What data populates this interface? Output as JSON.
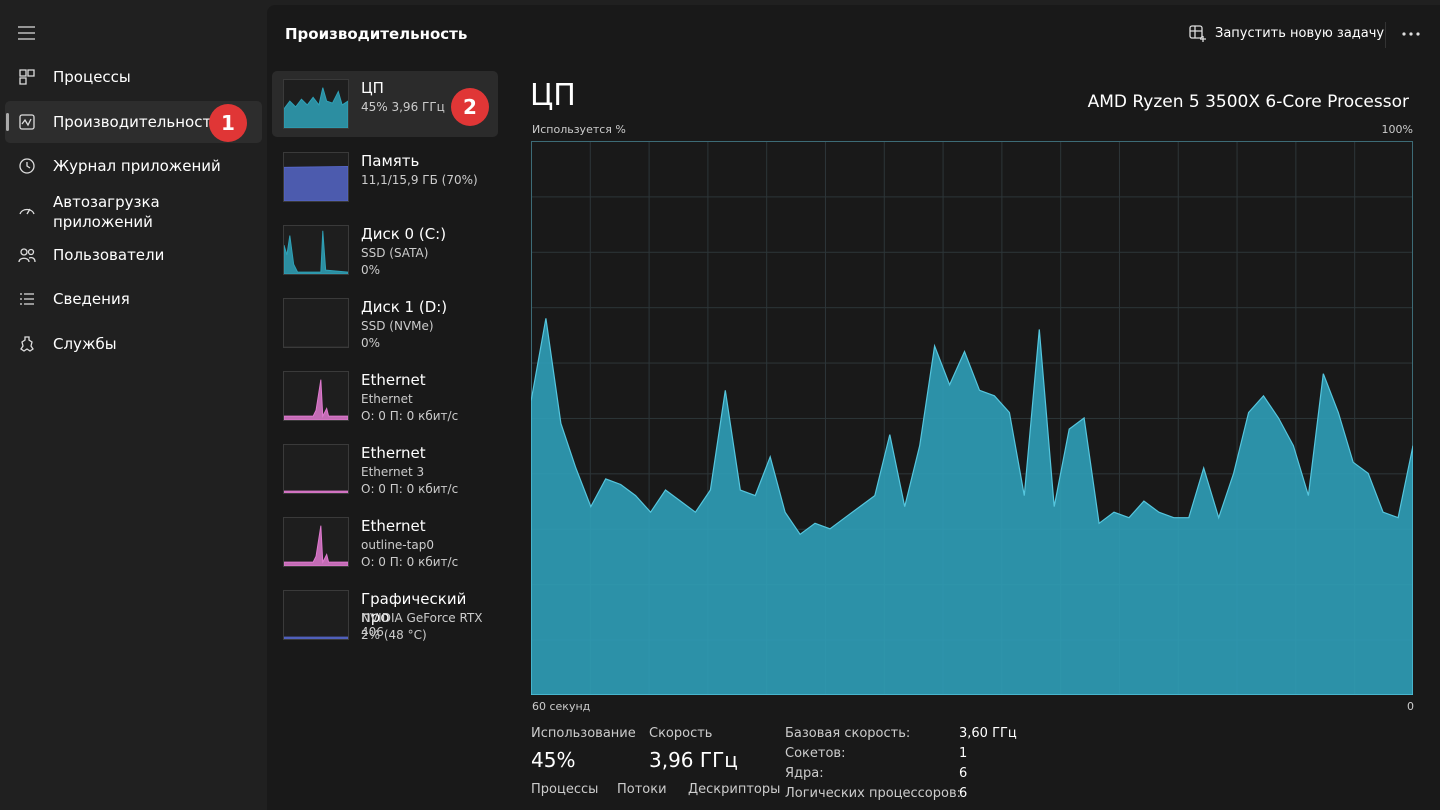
{
  "nav": {
    "items": [
      "Процессы",
      "Производительность",
      "Журнал приложений",
      "Автозагрузка приложений",
      "Пользователи",
      "Сведения",
      "Службы"
    ]
  },
  "badges": [
    "1",
    "2"
  ],
  "header": {
    "title": "Производительность",
    "action": "Запустить новую задачу"
  },
  "devices": [
    {
      "name": "ЦП",
      "lines": [
        "45%  3,96 ГГц"
      ]
    },
    {
      "name": "Память",
      "lines": [
        "11,1/15,9 ГБ (70%)"
      ]
    },
    {
      "name": "Диск 0 (C:)",
      "lines": [
        "SSD (SATA)",
        "0%"
      ]
    },
    {
      "name": "Диск 1 (D:)",
      "lines": [
        "SSD (NVMe)",
        "0%"
      ]
    },
    {
      "name": "Ethernet",
      "lines": [
        "Ethernet",
        "О: 0 П: 0 кбит/с"
      ]
    },
    {
      "name": "Ethernet",
      "lines": [
        "Ethernet 3",
        "О: 0 П: 0 кбит/с"
      ]
    },
    {
      "name": "Ethernet",
      "lines": [
        "outline-tap0",
        "О: 0 П: 0 кбит/с"
      ]
    },
    {
      "name": "Графический про",
      "lines": [
        "NVIDIA GeForce RTX 406",
        "2% (48 °C)"
      ]
    }
  ],
  "cpu": {
    "title": "ЦП",
    "model": "AMD Ryzen 5 3500X 6-Core Processor"
  },
  "chart_data": {
    "type": "area",
    "y_label": "Используется %",
    "color": "#2f9fb8",
    "ylim": [
      0,
      100
    ],
    "yticks": [
      {
        "value": 100,
        "label": "100%"
      }
    ],
    "xlim": [
      60,
      0
    ],
    "xticks": [
      {
        "value": 60,
        "label": "60 секунд"
      },
      0
    ],
    "values": [
      53,
      68,
      49,
      41,
      34,
      39,
      38,
      36,
      33,
      37,
      35,
      33,
      37,
      55,
      37,
      36,
      43,
      33,
      29,
      31,
      30,
      32,
      34,
      36,
      47,
      34,
      45,
      63,
      56,
      62,
      55,
      54,
      51,
      36,
      66,
      34,
      48,
      50,
      31,
      33,
      32,
      35,
      33,
      32,
      32,
      41,
      32,
      40,
      51,
      54,
      50,
      45,
      36,
      58,
      51,
      42,
      40,
      33,
      32,
      45
    ]
  },
  "stats": {
    "usage": {
      "label": "Использование",
      "value": "45%"
    },
    "speed": {
      "label": "Скорость",
      "value": "3,96 ГГц"
    },
    "counts": [
      "Процессы",
      "Потоки",
      "Дескрипторы"
    ],
    "details": [
      [
        "Базовая скорость:",
        "3,60 ГГц"
      ],
      [
        "Сокетов:",
        "1"
      ],
      [
        "Ядра:",
        "6"
      ],
      [
        "Логических процессоров:",
        "6"
      ]
    ]
  }
}
